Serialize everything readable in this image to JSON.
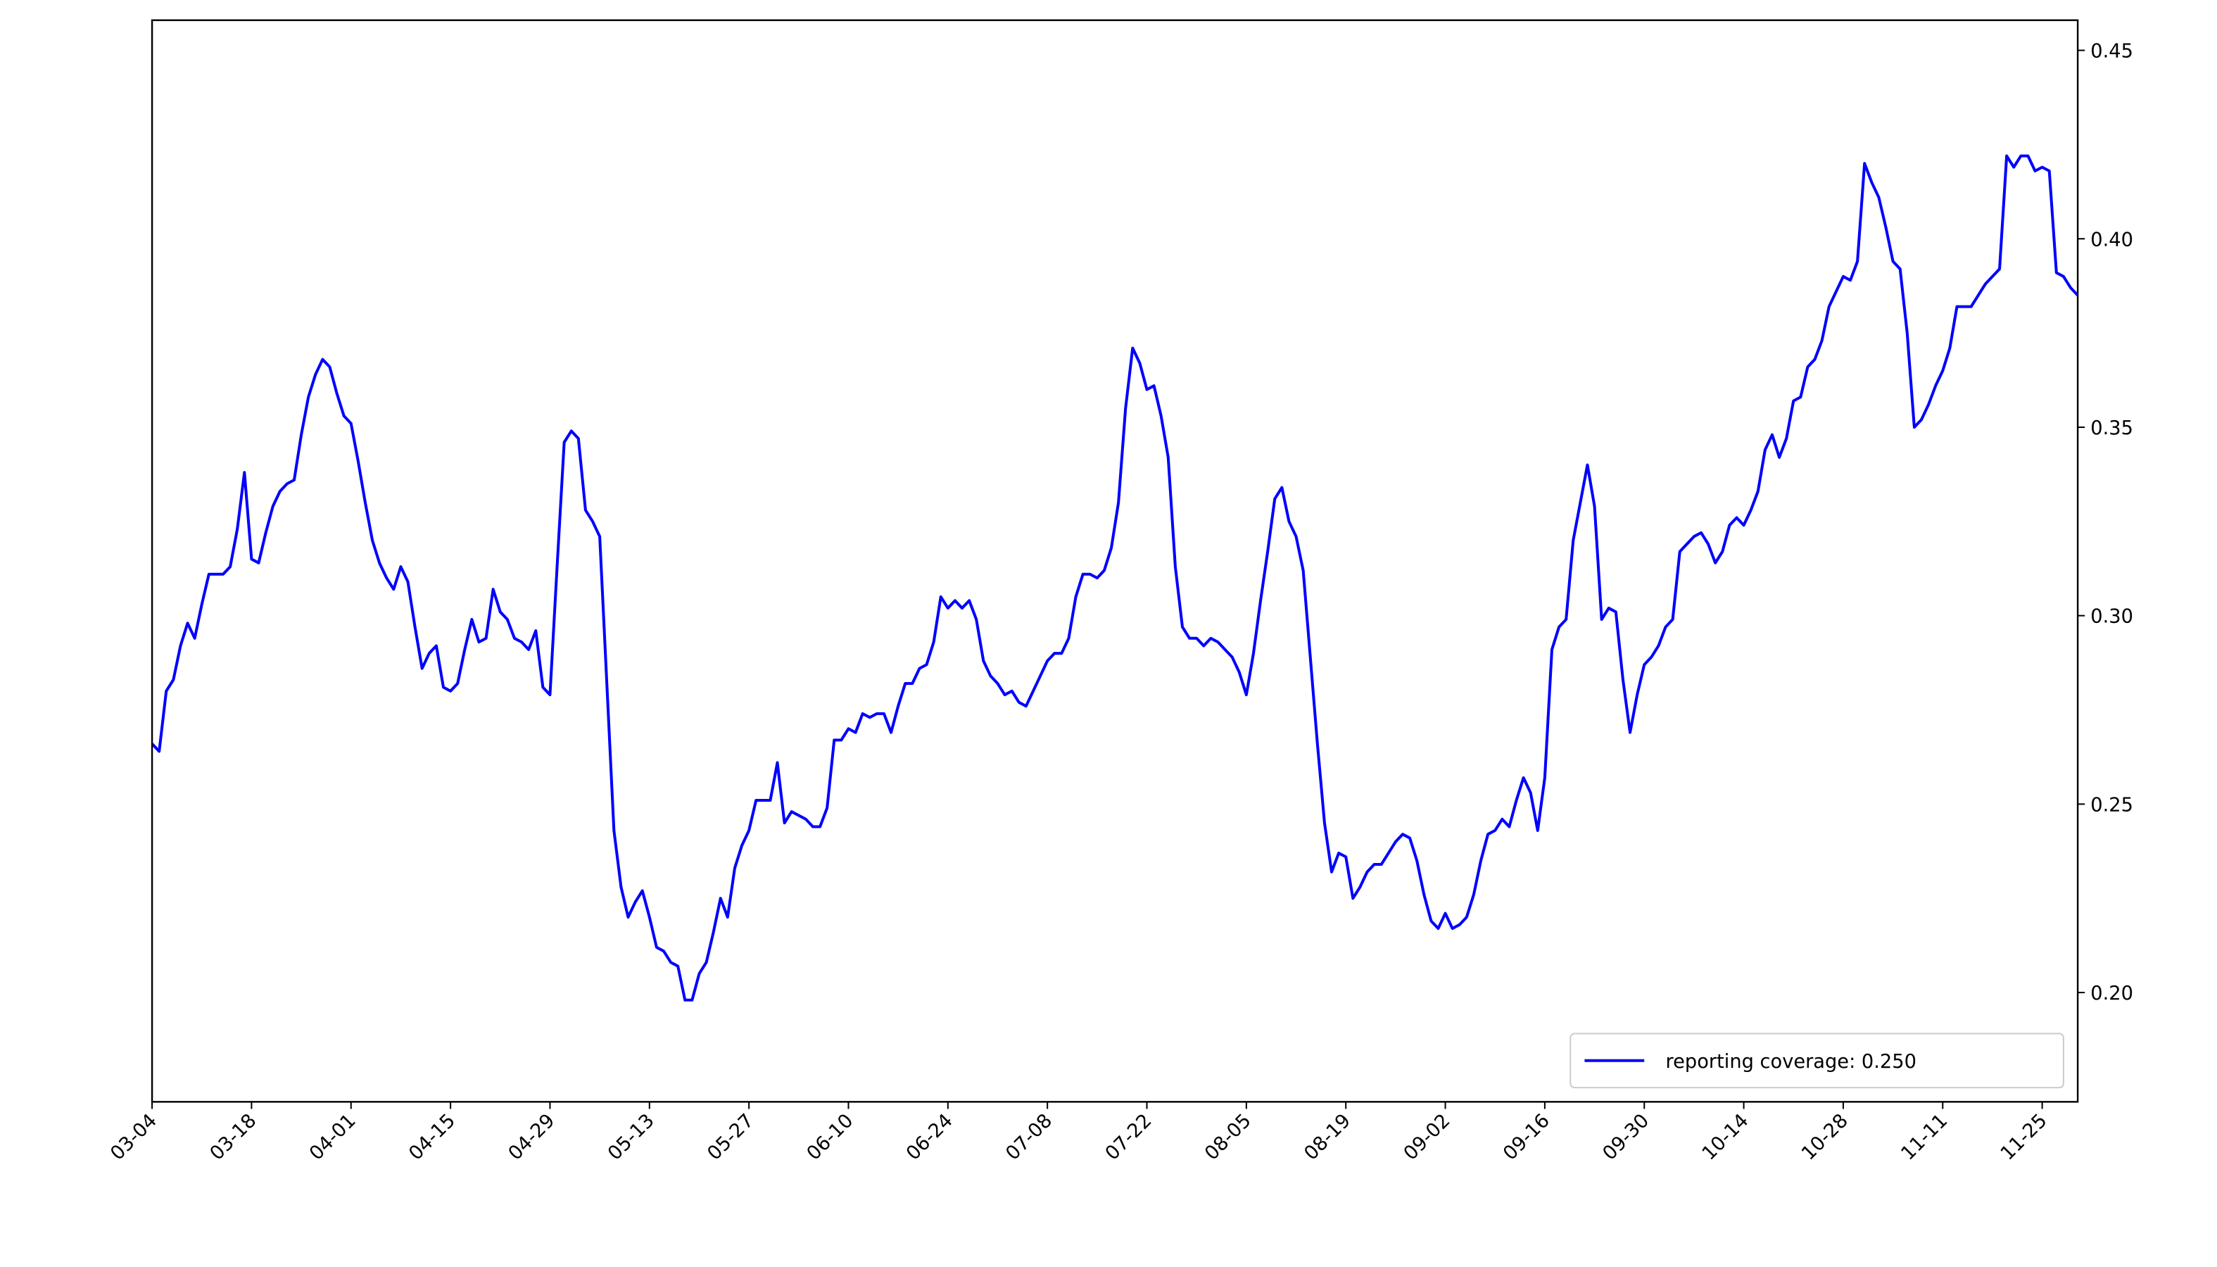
{
  "chart_data": {
    "type": "line",
    "x": [
      "03-04",
      "03-05",
      "03-06",
      "03-07",
      "03-08",
      "03-09",
      "03-10",
      "03-11",
      "03-12",
      "03-13",
      "03-14",
      "03-15",
      "03-16",
      "03-17",
      "03-18",
      "03-19",
      "03-20",
      "03-21",
      "03-22",
      "03-23",
      "03-24",
      "03-25",
      "03-26",
      "03-27",
      "03-28",
      "03-29",
      "03-30",
      "03-31",
      "04-01",
      "04-02",
      "04-03",
      "04-04",
      "04-05",
      "04-06",
      "04-07",
      "04-08",
      "04-09",
      "04-10",
      "04-11",
      "04-12",
      "04-13",
      "04-14",
      "04-15",
      "04-16",
      "04-17",
      "04-18",
      "04-19",
      "04-20",
      "04-21",
      "04-22",
      "04-23",
      "04-24",
      "04-25",
      "04-26",
      "04-27",
      "04-28",
      "04-29",
      "04-30",
      "05-01",
      "05-02",
      "05-03",
      "05-04",
      "05-05",
      "05-06",
      "05-07",
      "05-08",
      "05-09",
      "05-10",
      "05-11",
      "05-12",
      "05-13",
      "05-14",
      "05-15",
      "05-16",
      "05-17",
      "05-18",
      "05-19",
      "05-20",
      "05-21",
      "05-22",
      "05-23",
      "05-24",
      "05-25",
      "05-26",
      "05-27",
      "05-28",
      "05-29",
      "05-30",
      "05-31",
      "06-01",
      "06-02",
      "06-03",
      "06-04",
      "06-05",
      "06-06",
      "06-07",
      "06-08",
      "06-09",
      "06-10",
      "06-11",
      "06-12",
      "06-13",
      "06-14",
      "06-15",
      "06-16",
      "06-17",
      "06-18",
      "06-19",
      "06-20",
      "06-21",
      "06-22",
      "06-23",
      "06-24",
      "06-25",
      "06-26",
      "06-27",
      "06-28",
      "06-29",
      "06-30",
      "07-01",
      "07-02",
      "07-03",
      "07-04",
      "07-05",
      "07-06",
      "07-07",
      "07-08",
      "07-09",
      "07-10",
      "07-11",
      "07-12",
      "07-13",
      "07-14",
      "07-15",
      "07-16",
      "07-17",
      "07-18",
      "07-19",
      "07-20",
      "07-21",
      "07-22",
      "07-23",
      "07-24",
      "07-25",
      "07-26",
      "07-27",
      "07-28",
      "07-29",
      "07-30",
      "07-31",
      "08-01",
      "08-02",
      "08-03",
      "08-04",
      "08-05",
      "08-06",
      "08-07",
      "08-08",
      "08-09",
      "08-10",
      "08-11",
      "08-12",
      "08-13",
      "08-14",
      "08-15",
      "08-16",
      "08-17",
      "08-18",
      "08-19",
      "08-20",
      "08-21",
      "08-22",
      "08-23",
      "08-24",
      "08-25",
      "08-26",
      "08-27",
      "08-28",
      "08-29",
      "08-30",
      "08-31",
      "09-01",
      "09-02",
      "09-03",
      "09-04",
      "09-05",
      "09-06",
      "09-07",
      "09-08",
      "09-09",
      "09-10",
      "09-11",
      "09-12",
      "09-13",
      "09-14",
      "09-15",
      "09-16",
      "09-17",
      "09-18",
      "09-19",
      "09-20",
      "09-21",
      "09-22",
      "09-23",
      "09-24",
      "09-25",
      "09-26",
      "09-27",
      "09-28",
      "09-29",
      "09-30",
      "10-01",
      "10-02",
      "10-03",
      "10-04",
      "10-05",
      "10-06",
      "10-07",
      "10-08",
      "10-09",
      "10-10",
      "10-11",
      "10-12",
      "10-13",
      "10-14",
      "10-15",
      "10-16",
      "10-17",
      "10-18",
      "10-19",
      "10-20",
      "10-21",
      "10-22",
      "10-23",
      "10-24",
      "10-25",
      "10-26",
      "10-27",
      "10-28",
      "10-29",
      "10-30",
      "10-31",
      "11-01",
      "11-02",
      "11-03",
      "11-04",
      "11-05",
      "11-06",
      "11-07",
      "11-08",
      "11-09",
      "11-10",
      "11-11",
      "11-12",
      "11-13",
      "11-14",
      "11-15",
      "11-16",
      "11-17",
      "11-18",
      "11-19",
      "11-20",
      "11-21",
      "11-22",
      "11-23",
      "11-24",
      "11-25",
      "11-26",
      "11-27",
      "11-28",
      "11-29",
      "11-30"
    ],
    "series": [
      {
        "name": "reporting coverage: 0.250",
        "color": "#0000ff",
        "values": [
          0.266,
          0.264,
          0.28,
          0.283,
          0.292,
          0.298,
          0.294,
          0.303,
          0.311,
          0.311,
          0.311,
          0.313,
          0.323,
          0.338,
          0.315,
          0.314,
          0.322,
          0.329,
          0.333,
          0.335,
          0.336,
          0.348,
          0.358,
          0.364,
          0.368,
          0.366,
          0.359,
          0.353,
          0.351,
          0.341,
          0.33,
          0.32,
          0.314,
          0.31,
          0.307,
          0.313,
          0.309,
          0.297,
          0.286,
          0.29,
          0.292,
          0.281,
          0.28,
          0.282,
          0.291,
          0.299,
          0.293,
          0.294,
          0.307,
          0.301,
          0.299,
          0.294,
          0.293,
          0.291,
          0.296,
          0.281,
          0.279,
          0.313,
          0.346,
          0.349,
          0.347,
          0.328,
          0.325,
          0.321,
          0.282,
          0.243,
          0.228,
          0.22,
          0.224,
          0.227,
          0.22,
          0.212,
          0.211,
          0.208,
          0.207,
          0.198,
          0.198,
          0.205,
          0.208,
          0.216,
          0.225,
          0.22,
          0.233,
          0.239,
          0.243,
          0.251,
          0.251,
          0.251,
          0.261,
          0.245,
          0.248,
          0.247,
          0.246,
          0.244,
          0.244,
          0.249,
          0.267,
          0.267,
          0.27,
          0.269,
          0.274,
          0.273,
          0.274,
          0.274,
          0.269,
          0.276,
          0.282,
          0.282,
          0.286,
          0.287,
          0.293,
          0.305,
          0.302,
          0.304,
          0.302,
          0.304,
          0.299,
          0.288,
          0.284,
          0.282,
          0.279,
          0.28,
          0.277,
          0.276,
          0.28,
          0.284,
          0.288,
          0.29,
          0.29,
          0.294,
          0.305,
          0.311,
          0.311,
          0.31,
          0.312,
          0.318,
          0.33,
          0.355,
          0.371,
          0.367,
          0.36,
          0.361,
          0.353,
          0.342,
          0.313,
          0.297,
          0.294,
          0.294,
          0.292,
          0.294,
          0.293,
          0.291,
          0.289,
          0.285,
          0.279,
          0.29,
          0.304,
          0.317,
          0.331,
          0.334,
          0.325,
          0.321,
          0.312,
          0.289,
          0.266,
          0.245,
          0.232,
          0.237,
          0.236,
          0.225,
          0.228,
          0.232,
          0.234,
          0.234,
          0.237,
          0.24,
          0.242,
          0.241,
          0.235,
          0.226,
          0.219,
          0.217,
          0.221,
          0.217,
          0.218,
          0.22,
          0.226,
          0.235,
          0.242,
          0.243,
          0.246,
          0.244,
          0.251,
          0.257,
          0.253,
          0.243,
          0.257,
          0.291,
          0.297,
          0.299,
          0.32,
          0.33,
          0.34,
          0.329,
          0.299,
          0.302,
          0.301,
          0.283,
          0.269,
          0.279,
          0.287,
          0.289,
          0.292,
          0.297,
          0.299,
          0.317,
          0.319,
          0.321,
          0.322,
          0.319,
          0.314,
          0.317,
          0.324,
          0.326,
          0.324,
          0.328,
          0.333,
          0.344,
          0.348,
          0.342,
          0.347,
          0.357,
          0.358,
          0.366,
          0.368,
          0.373,
          0.382,
          0.386,
          0.39,
          0.389,
          0.394,
          0.42,
          0.415,
          0.411,
          0.403,
          0.394,
          0.392,
          0.375,
          0.35,
          0.352,
          0.356,
          0.361,
          0.365,
          0.371,
          0.382,
          0.382,
          0.382,
          0.385,
          0.388,
          0.39,
          0.392,
          0.422,
          0.419,
          0.422,
          0.422,
          0.418,
          0.419,
          0.418,
          0.391,
          0.39,
          0.387,
          0.385
        ]
      }
    ],
    "xlim": [
      "03-04",
      "11-30"
    ],
    "xticks": [
      "03-04",
      "03-18",
      "04-01",
      "04-15",
      "04-29",
      "05-13",
      "05-27",
      "06-10",
      "06-24",
      "07-08",
      "07-22",
      "08-05",
      "08-19",
      "09-02",
      "09-16",
      "09-30",
      "10-14",
      "10-28",
      "11-11",
      "11-25"
    ],
    "ylim": [
      0.171,
      0.458
    ],
    "yticks": [
      {
        "value": 0.2,
        "label": "0.20"
      },
      {
        "value": 0.25,
        "label": "0.25"
      },
      {
        "value": 0.3,
        "label": "0.30"
      },
      {
        "value": 0.35,
        "label": "0.35"
      },
      {
        "value": 0.4,
        "label": "0.40"
      },
      {
        "value": 0.45,
        "label": "0.45"
      }
    ],
    "y_axis_side": "right",
    "grid": false,
    "legend": "lower right"
  }
}
